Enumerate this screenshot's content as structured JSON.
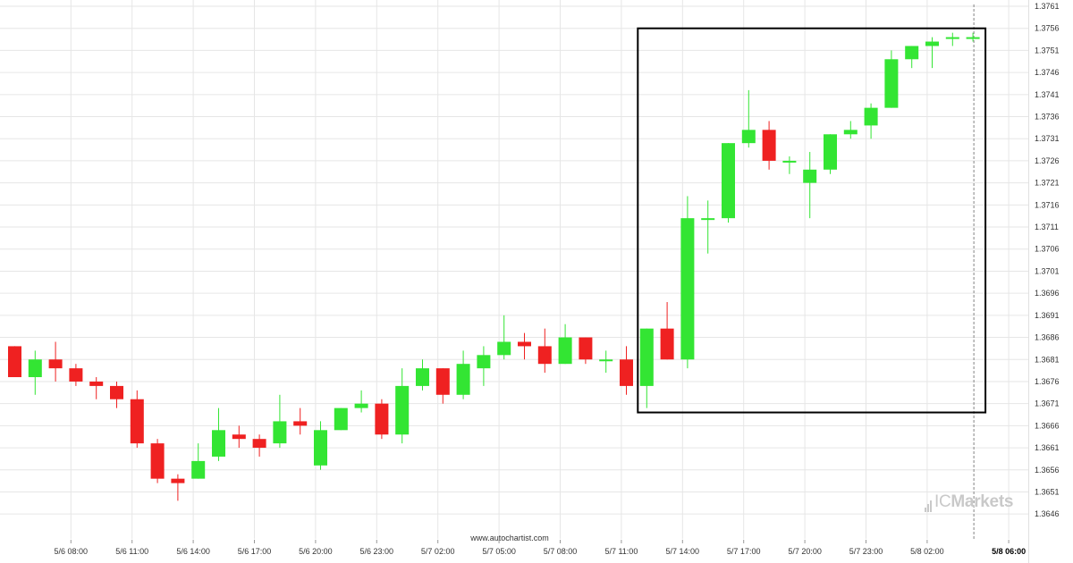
{
  "chart_data": {
    "type": "candlestick",
    "title": "",
    "xlabel": "",
    "ylabel": "",
    "ylim": [
      1.3643,
      1.3761
    ],
    "y_ticks": [
      "1.3761",
      "1.3756",
      "1.3751",
      "1.3746",
      "1.3741",
      "1.3736",
      "1.3731",
      "1.3726",
      "1.3721",
      "1.3716",
      "1.3711",
      "1.3706",
      "1.3701",
      "1.3696",
      "1.3691",
      "1.3686",
      "1.3681",
      "1.3676",
      "1.3671",
      "1.3666",
      "1.3661",
      "1.3656",
      "1.3651",
      "1.3646"
    ],
    "x_ticks": [
      {
        "label": "5/6 08:00",
        "index": 1
      },
      {
        "label": "5/6 11:00",
        "index": 4
      },
      {
        "label": "5/6 14:00",
        "index": 7
      },
      {
        "label": "5/6 17:00",
        "index": 10
      },
      {
        "label": "5/6 20:00",
        "index": 13
      },
      {
        "label": "5/6 23:00",
        "index": 16
      },
      {
        "label": "5/7 02:00",
        "index": 19
      },
      {
        "label": "5/7 05:00",
        "index": 22
      },
      {
        "label": "5/7 08:00",
        "index": 25
      },
      {
        "label": "5/7 11:00",
        "index": 28
      },
      {
        "label": "5/7 14:00",
        "index": 31
      },
      {
        "label": "5/7 17:00",
        "index": 34
      },
      {
        "label": "5/7 20:00",
        "index": 37
      },
      {
        "label": "5/7 23:00",
        "index": 40
      },
      {
        "label": "5/8 02:00",
        "index": 43
      },
      {
        "label": "5/8 06:00",
        "index": 47,
        "bold": true
      }
    ],
    "candles": [
      {
        "o": 1.3684,
        "h": 1.3684,
        "l": 1.3677,
        "c": 1.3677
      },
      {
        "o": 1.3677,
        "h": 1.3683,
        "l": 1.3673,
        "c": 1.3681
      },
      {
        "o": 1.3681,
        "h": 1.3685,
        "l": 1.3676,
        "c": 1.3679
      },
      {
        "o": 1.3679,
        "h": 1.368,
        "l": 1.3675,
        "c": 1.3676
      },
      {
        "o": 1.3676,
        "h": 1.3677,
        "l": 1.3672,
        "c": 1.3675
      },
      {
        "o": 1.3675,
        "h": 1.3676,
        "l": 1.367,
        "c": 1.3672
      },
      {
        "o": 1.3672,
        "h": 1.3674,
        "l": 1.3661,
        "c": 1.3662
      },
      {
        "o": 1.3662,
        "h": 1.3663,
        "l": 1.3653,
        "c": 1.3654
      },
      {
        "o": 1.3654,
        "h": 1.3655,
        "l": 1.3649,
        "c": 1.3653
      },
      {
        "o": 1.3654,
        "h": 1.3662,
        "l": 1.3654,
        "c": 1.3658
      },
      {
        "o": 1.3659,
        "h": 1.367,
        "l": 1.3658,
        "c": 1.3665
      },
      {
        "o": 1.3664,
        "h": 1.3666,
        "l": 1.3661,
        "c": 1.3663
      },
      {
        "o": 1.3663,
        "h": 1.3664,
        "l": 1.3659,
        "c": 1.3661
      },
      {
        "o": 1.3662,
        "h": 1.3673,
        "l": 1.3661,
        "c": 1.3667
      },
      {
        "o": 1.3667,
        "h": 1.367,
        "l": 1.3664,
        "c": 1.3666
      },
      {
        "o": 1.3657,
        "h": 1.3667,
        "l": 1.3656,
        "c": 1.3665
      },
      {
        "o": 1.3665,
        "h": 1.367,
        "l": 1.3665,
        "c": 1.367
      },
      {
        "o": 1.367,
        "h": 1.3674,
        "l": 1.3669,
        "c": 1.3671
      },
      {
        "o": 1.3671,
        "h": 1.3672,
        "l": 1.3663,
        "c": 1.3664
      },
      {
        "o": 1.3664,
        "h": 1.3679,
        "l": 1.3662,
        "c": 1.3675
      },
      {
        "o": 1.3675,
        "h": 1.3681,
        "l": 1.3674,
        "c": 1.3679
      },
      {
        "o": 1.3679,
        "h": 1.3679,
        "l": 1.3671,
        "c": 1.3673
      },
      {
        "o": 1.3673,
        "h": 1.3683,
        "l": 1.3672,
        "c": 1.368
      },
      {
        "o": 1.3679,
        "h": 1.3684,
        "l": 1.3675,
        "c": 1.3682
      },
      {
        "o": 1.3682,
        "h": 1.3691,
        "l": 1.3681,
        "c": 1.3685
      },
      {
        "o": 1.3685,
        "h": 1.3687,
        "l": 1.3681,
        "c": 1.3684
      },
      {
        "o": 1.3684,
        "h": 1.3688,
        "l": 1.3678,
        "c": 1.368
      },
      {
        "o": 1.368,
        "h": 1.3689,
        "l": 1.368,
        "c": 1.3686
      },
      {
        "o": 1.3686,
        "h": 1.3686,
        "l": 1.368,
        "c": 1.3681
      },
      {
        "o": 1.3681,
        "h": 1.3683,
        "l": 1.3678,
        "c": 1.3681
      },
      {
        "o": 1.3681,
        "h": 1.3684,
        "l": 1.3673,
        "c": 1.3675
      },
      {
        "o": 1.3675,
        "h": 1.3688,
        "l": 1.367,
        "c": 1.3688
      },
      {
        "o": 1.3688,
        "h": 1.3694,
        "l": 1.3681,
        "c": 1.3681
      },
      {
        "o": 1.3681,
        "h": 1.3718,
        "l": 1.3679,
        "c": 1.3713
      },
      {
        "o": 1.3713,
        "h": 1.3717,
        "l": 1.3705,
        "c": 1.3713
      },
      {
        "o": 1.3713,
        "h": 1.373,
        "l": 1.3712,
        "c": 1.373
      },
      {
        "o": 1.373,
        "h": 1.3742,
        "l": 1.3729,
        "c": 1.3733
      },
      {
        "o": 1.3733,
        "h": 1.3735,
        "l": 1.3724,
        "c": 1.3726
      },
      {
        "o": 1.3726,
        "h": 1.3727,
        "l": 1.3723,
        "c": 1.3726
      },
      {
        "o": 1.3721,
        "h": 1.3728,
        "l": 1.3713,
        "c": 1.3724
      },
      {
        "o": 1.3724,
        "h": 1.3732,
        "l": 1.3723,
        "c": 1.3732
      },
      {
        "o": 1.3732,
        "h": 1.3735,
        "l": 1.3731,
        "c": 1.3733
      },
      {
        "o": 1.3734,
        "h": 1.3739,
        "l": 1.3731,
        "c": 1.3738
      },
      {
        "o": 1.3738,
        "h": 1.3751,
        "l": 1.3738,
        "c": 1.3749
      },
      {
        "o": 1.3749,
        "h": 1.3752,
        "l": 1.3747,
        "c": 1.3752
      },
      {
        "o": 1.3752,
        "h": 1.3754,
        "l": 1.3747,
        "c": 1.3753
      },
      {
        "o": 1.3754,
        "h": 1.3755,
        "l": 1.3752,
        "c": 1.3754
      },
      {
        "o": 1.3754,
        "h": 1.3755,
        "l": 1.3753,
        "c": 1.3754
      }
    ],
    "highlight_box": {
      "start_index": 31,
      "end_index": 47,
      "top": 1.3756,
      "bottom": 1.3669
    },
    "vertical_marker_index": 47,
    "grid": true,
    "colors": {
      "up": "#33e533",
      "down": "#ef2121",
      "grid": "#e6e6e6",
      "box": "#000000",
      "axis_text": "#333333"
    }
  },
  "source_label": "www.autochartist.com",
  "brand": {
    "logo_part1": "IC",
    "logo_part2": "Markets",
    "logo_icon": "bar-signal-icon"
  }
}
